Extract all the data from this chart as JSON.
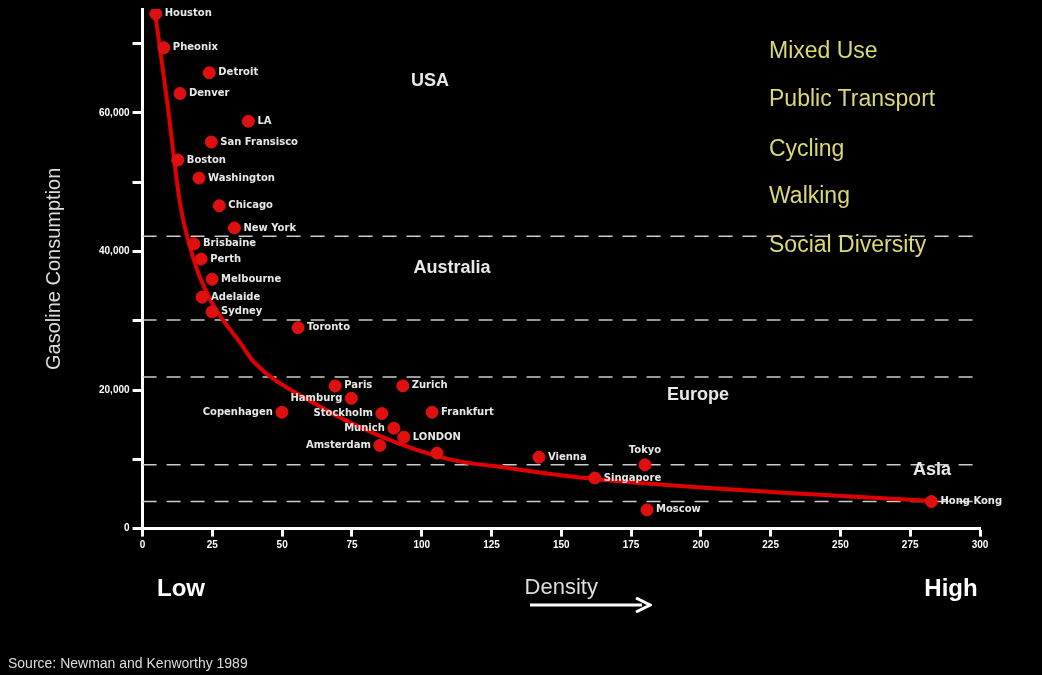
{
  "chart_data": {
    "type": "scatter",
    "xlabel": "Density",
    "ylabel": "Gasoline Consumption",
    "xlim": [
      0,
      300
    ],
    "xticks": [
      0,
      25,
      50,
      75,
      100,
      125,
      150,
      175,
      200,
      225,
      250,
      275,
      300
    ],
    "ylim": [
      0,
      75000
    ],
    "yticks": [
      0,
      {
        "value": 10000,
        "label": null
      },
      {
        "value": 20000,
        "label": "20,000"
      },
      {
        "value": 30000,
        "label": null
      },
      {
        "value": 40000,
        "label": "40,000"
      },
      {
        "value": 50000,
        "label": null
      },
      {
        "value": 60000,
        "label": "60,000"
      },
      {
        "value": 70000,
        "label": null
      }
    ],
    "grid": false,
    "legend": false,
    "series": [
      {
        "marker": "circle",
        "color": "#e01010",
        "x": [
          4.7,
          7.6,
          23.9,
          13.4,
          37.9,
          24.6,
          12.6,
          20.2,
          27.5,
          32.9,
          18.4,
          21,
          24.9,
          21.3,
          24.9,
          55.7,
          69,
          93.2,
          74.8,
          49.9,
          85.7,
          103.7,
          93.6,
          90,
          85,
          105.5,
          142,
          162,
          180,
          180.7,
          282.6
        ],
        "values": [
          74300,
          69400,
          65800,
          62800,
          58800,
          55800,
          53200,
          50600,
          46600,
          43400,
          41100,
          38900,
          36000,
          33400,
          31300,
          29000,
          20600,
          20600,
          18800,
          16800,
          16600,
          16800,
          13200,
          14500,
          12000,
          10900,
          10300,
          7300,
          9200,
          2700,
          3900
        ]
      },
      {
        "type": "line",
        "marker": "none",
        "color": "#e00000",
        "x": [
          4.3,
          6,
          9,
          13.4,
          19,
          25,
          35,
          40,
          61,
          86,
          110,
          130,
          161,
          225,
          283
        ],
        "values": [
          75000,
          70000,
          61000,
          47000,
          38000,
          32500,
          26800,
          24000,
          18200,
          13200,
          10000,
          8800,
          7200,
          5300,
          4000
        ]
      }
    ],
    "ref_lines": [
      {
        "axis": "y",
        "value": 42200,
        "line_style": "dashed",
        "color": "#cccccc"
      },
      {
        "axis": "y",
        "value": 30100,
        "line_style": "dashed",
        "color": "#cccccc"
      },
      {
        "axis": "y",
        "value": 21900,
        "line_style": "dashed",
        "color": "#cccccc"
      },
      {
        "axis": "y",
        "value": 9200,
        "line_style": "dashed",
        "color": "#cccccc"
      },
      {
        "axis": "y",
        "value": 3900,
        "line_style": "dashed",
        "color": "#cccccc"
      }
    ],
    "annotations": [
      {
        "text": "Houston",
        "x": 4.7,
        "y": 74300
      },
      {
        "text": "Pheonix",
        "x": 7.6,
        "y": 69400
      },
      {
        "text": "Detroit",
        "x": 23.9,
        "y": 65800
      },
      {
        "text": "Denver",
        "x": 13.4,
        "y": 62800
      },
      {
        "text": "LA",
        "x": 37.9,
        "y": 58800
      },
      {
        "text": "San Fransisco",
        "x": 24.6,
        "y": 55800
      },
      {
        "text": "Boston",
        "x": 12.6,
        "y": 53200
      },
      {
        "text": "Washington",
        "x": 20.2,
        "y": 50600
      },
      {
        "text": "Chicago",
        "x": 27.5,
        "y": 46600
      },
      {
        "text": "New York",
        "x": 32.9,
        "y": 43400
      },
      {
        "text": "Brisbaine",
        "x": 18.4,
        "y": 41100
      },
      {
        "text": "Perth",
        "x": 21,
        "y": 38900
      },
      {
        "text": "Melbourne",
        "x": 24.9,
        "y": 36000
      },
      {
        "text": "Adelaide",
        "x": 21.3,
        "y": 33400
      },
      {
        "text": "Sydney",
        "x": 24.9,
        "y": 31300
      },
      {
        "text": "Toronto",
        "x": 55.7,
        "y": 29000
      },
      {
        "text": "Paris",
        "x": 69,
        "y": 20600
      },
      {
        "text": "Zurich",
        "x": 93.2,
        "y": 20600
      },
      {
        "text": "Hamburg",
        "x": 74.8,
        "y": 18800
      },
      {
        "text": "Frankfurt",
        "x": 103.7,
        "y": 16800
      },
      {
        "text": "Stockholm",
        "x": 85.7,
        "y": 16600
      },
      {
        "text": "Copenhagen",
        "x": 49.9,
        "y": 16800
      },
      {
        "text": "LONDON",
        "x": 93.6,
        "y": 13200
      },
      {
        "text": "Munich",
        "x": 90,
        "y": 14500
      },
      {
        "text": "Amsterdam",
        "x": 85,
        "y": 12000
      },
      {
        "text": "Vienna",
        "x": 142,
        "y": 10300
      },
      {
        "text": "Singapore",
        "x": 162,
        "y": 7300
      },
      {
        "text": "Tokyo",
        "x": 180,
        "y": 9200
      },
      {
        "text": "Moscow",
        "x": 180.7,
        "y": 2700
      },
      {
        "text": "Hong Kong",
        "x": 282.6,
        "y": 3900
      },
      "USA",
      "Australia",
      "Europe",
      "Asia",
      "Mixed Use",
      "Public Transport",
      "Cycling",
      "Walking",
      "Social Diversity",
      "Low",
      "High",
      "Source: Newman and Kenworthy 1989"
    ]
  }
}
